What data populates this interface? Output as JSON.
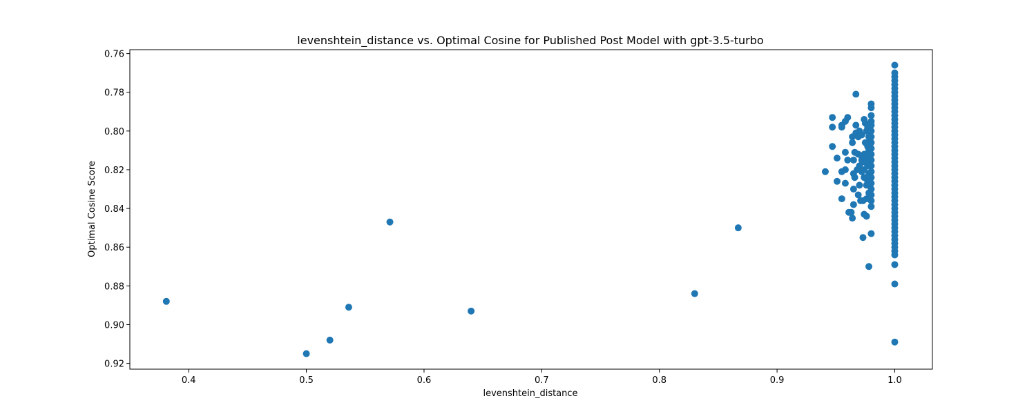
{
  "chart_data": {
    "type": "scatter",
    "title": "levenshtein_distance vs. Optimal Cosine for Published Post Model with gpt-3.5-turbo",
    "xlabel": "levenshtein_distance",
    "ylabel": "Optimal Cosine Score",
    "xlim": [
      0.35,
      1.032
    ],
    "ylim": [
      0.923,
      0.758
    ],
    "y_inverted": true,
    "x_ticks": [
      0.4,
      0.5,
      0.6,
      0.7,
      0.8,
      0.9,
      1.0
    ],
    "x_tick_labels": [
      "0.4",
      "0.5",
      "0.6",
      "0.7",
      "0.8",
      "0.9",
      "1.0"
    ],
    "y_ticks": [
      0.76,
      0.78,
      0.8,
      0.82,
      0.84,
      0.86,
      0.88,
      0.9,
      0.92
    ],
    "y_tick_labels": [
      "0.76",
      "0.78",
      "0.80",
      "0.82",
      "0.84",
      "0.86",
      "0.88",
      "0.90",
      "0.92"
    ],
    "grid": false,
    "legend": false,
    "marker_color": "#1f77b4",
    "points": [
      [
        0.381,
        0.888
      ],
      [
        0.5,
        0.915
      ],
      [
        0.52,
        0.908
      ],
      [
        0.536,
        0.891
      ],
      [
        0.571,
        0.847
      ],
      [
        0.64,
        0.893
      ],
      [
        0.83,
        0.884
      ],
      [
        0.867,
        0.85
      ],
      [
        0.941,
        0.821
      ],
      [
        0.947,
        0.793
      ],
      [
        0.947,
        0.798
      ],
      [
        0.947,
        0.808
      ],
      [
        0.951,
        0.814
      ],
      [
        0.951,
        0.826
      ],
      [
        0.955,
        0.797
      ],
      [
        0.955,
        0.798
      ],
      [
        0.955,
        0.821
      ],
      [
        0.955,
        0.835
      ],
      [
        0.958,
        0.795
      ],
      [
        0.958,
        0.811
      ],
      [
        0.958,
        0.82
      ],
      [
        0.958,
        0.827
      ],
      [
        0.96,
        0.793
      ],
      [
        0.96,
        0.815
      ],
      [
        0.961,
        0.842
      ],
      [
        0.963,
        0.842
      ],
      [
        0.964,
        0.803
      ],
      [
        0.964,
        0.806
      ],
      [
        0.964,
        0.845
      ],
      [
        0.965,
        0.815
      ],
      [
        0.965,
        0.822
      ],
      [
        0.965,
        0.83
      ],
      [
        0.965,
        0.838
      ],
      [
        0.966,
        0.811
      ],
      [
        0.966,
        0.824
      ],
      [
        0.967,
        0.781
      ],
      [
        0.967,
        0.797
      ],
      [
        0.967,
        0.801
      ],
      [
        0.968,
        0.82
      ],
      [
        0.969,
        0.803
      ],
      [
        0.969,
        0.812
      ],
      [
        0.969,
        0.833
      ],
      [
        0.97,
        0.8
      ],
      [
        0.97,
        0.818
      ],
      [
        0.97,
        0.828
      ],
      [
        0.971,
        0.836
      ],
      [
        0.972,
        0.802
      ],
      [
        0.972,
        0.813
      ],
      [
        0.972,
        0.815
      ],
      [
        0.972,
        0.821
      ],
      [
        0.973,
        0.836
      ],
      [
        0.973,
        0.855
      ],
      [
        0.974,
        0.794
      ],
      [
        0.974,
        0.812
      ],
      [
        0.974,
        0.816
      ],
      [
        0.974,
        0.82
      ],
      [
        0.974,
        0.824
      ],
      [
        0.974,
        0.843
      ],
      [
        0.975,
        0.796
      ],
      [
        0.975,
        0.806
      ],
      [
        0.976,
        0.8
      ],
      [
        0.976,
        0.815
      ],
      [
        0.976,
        0.828
      ],
      [
        0.976,
        0.835
      ],
      [
        0.976,
        0.844
      ],
      [
        0.977,
        0.798
      ],
      [
        0.977,
        0.808
      ],
      [
        0.977,
        0.813
      ],
      [
        0.977,
        0.818
      ],
      [
        0.977,
        0.826
      ],
      [
        0.978,
        0.803
      ],
      [
        0.978,
        0.81
      ],
      [
        0.978,
        0.822
      ],
      [
        0.978,
        0.832
      ],
      [
        0.978,
        0.87
      ],
      [
        0.979,
        0.8
      ],
      [
        0.979,
        0.805
      ],
      [
        0.979,
        0.812
      ],
      [
        0.979,
        0.816
      ],
      [
        0.979,
        0.825
      ],
      [
        0.979,
        0.834
      ],
      [
        0.98,
        0.786
      ],
      [
        0.98,
        0.788
      ],
      [
        0.98,
        0.792
      ],
      [
        0.98,
        0.795
      ],
      [
        0.98,
        0.797
      ],
      [
        0.98,
        0.8
      ],
      [
        0.98,
        0.803
      ],
      [
        0.98,
        0.806
      ],
      [
        0.98,
        0.809
      ],
      [
        0.98,
        0.812
      ],
      [
        0.98,
        0.815
      ],
      [
        0.98,
        0.818
      ],
      [
        0.98,
        0.821
      ],
      [
        0.98,
        0.824
      ],
      [
        0.98,
        0.827
      ],
      [
        0.98,
        0.83
      ],
      [
        0.98,
        0.833
      ],
      [
        0.98,
        0.836
      ],
      [
        0.98,
        0.839
      ],
      [
        0.98,
        0.853
      ],
      [
        1.0,
        0.766
      ],
      [
        1.0,
        0.77
      ],
      [
        1.0,
        0.772
      ],
      [
        1.0,
        0.774
      ],
      [
        1.0,
        0.776
      ],
      [
        1.0,
        0.778
      ],
      [
        1.0,
        0.78
      ],
      [
        1.0,
        0.782
      ],
      [
        1.0,
        0.784
      ],
      [
        1.0,
        0.786
      ],
      [
        1.0,
        0.788
      ],
      [
        1.0,
        0.79
      ],
      [
        1.0,
        0.792
      ],
      [
        1.0,
        0.794
      ],
      [
        1.0,
        0.796
      ],
      [
        1.0,
        0.798
      ],
      [
        1.0,
        0.8
      ],
      [
        1.0,
        0.802
      ],
      [
        1.0,
        0.804
      ],
      [
        1.0,
        0.806
      ],
      [
        1.0,
        0.808
      ],
      [
        1.0,
        0.81
      ],
      [
        1.0,
        0.812
      ],
      [
        1.0,
        0.814
      ],
      [
        1.0,
        0.816
      ],
      [
        1.0,
        0.818
      ],
      [
        1.0,
        0.82
      ],
      [
        1.0,
        0.822
      ],
      [
        1.0,
        0.824
      ],
      [
        1.0,
        0.826
      ],
      [
        1.0,
        0.828
      ],
      [
        1.0,
        0.83
      ],
      [
        1.0,
        0.832
      ],
      [
        1.0,
        0.834
      ],
      [
        1.0,
        0.836
      ],
      [
        1.0,
        0.838
      ],
      [
        1.0,
        0.84
      ],
      [
        1.0,
        0.842
      ],
      [
        1.0,
        0.844
      ],
      [
        1.0,
        0.846
      ],
      [
        1.0,
        0.848
      ],
      [
        1.0,
        0.85
      ],
      [
        1.0,
        0.852
      ],
      [
        1.0,
        0.854
      ],
      [
        1.0,
        0.856
      ],
      [
        1.0,
        0.858
      ],
      [
        1.0,
        0.86
      ],
      [
        1.0,
        0.862
      ],
      [
        1.0,
        0.864
      ],
      [
        1.0,
        0.869
      ],
      [
        1.0,
        0.879
      ],
      [
        1.0,
        0.909
      ]
    ]
  }
}
